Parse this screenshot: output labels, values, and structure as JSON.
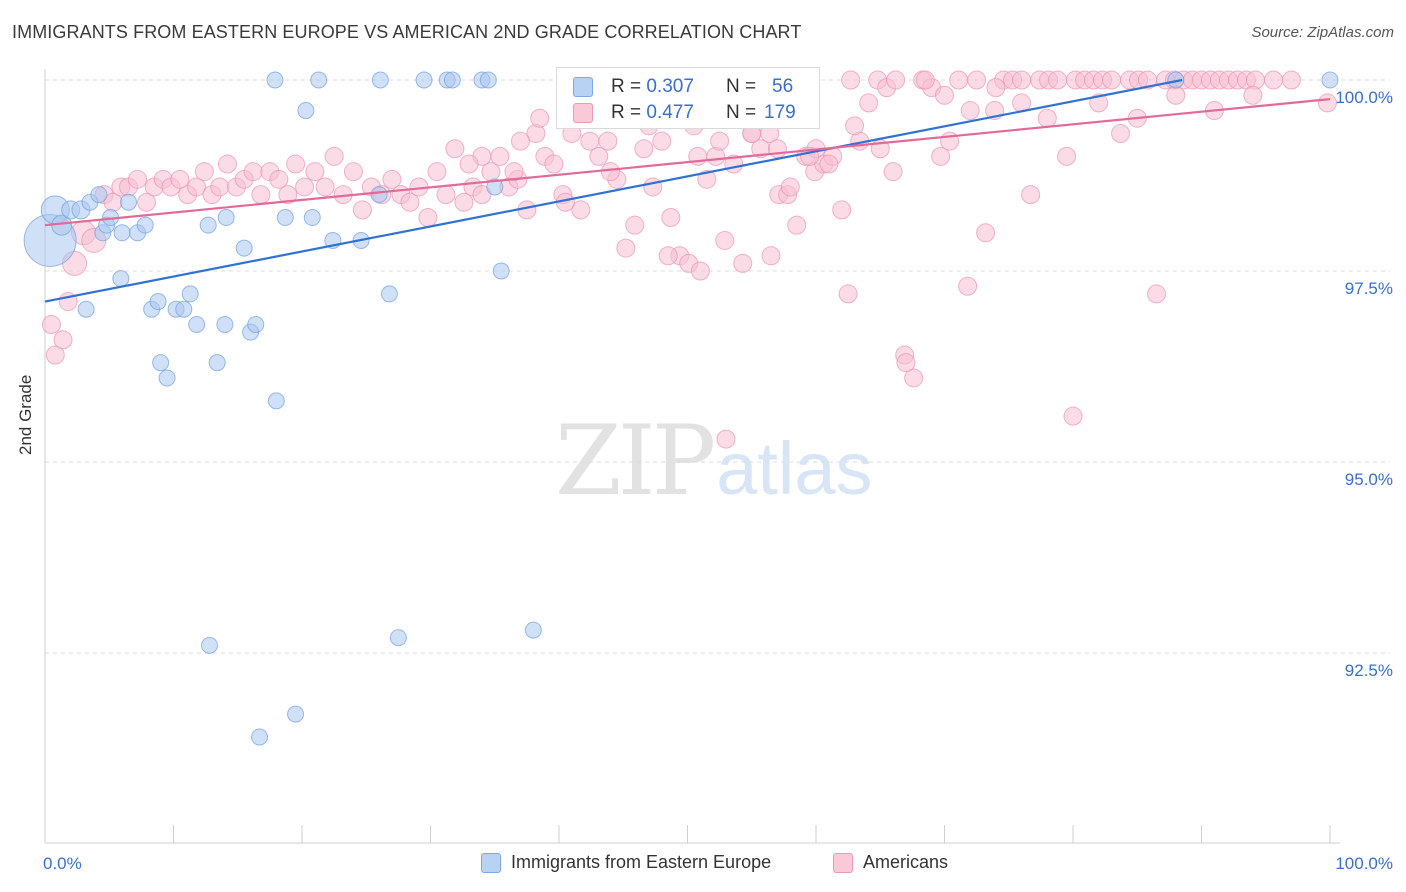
{
  "header": {
    "title": "IMMIGRANTS FROM EASTERN EUROPE VS AMERICAN 2ND GRADE CORRELATION CHART",
    "source": "Source: ZipAtlas.com"
  },
  "watermark": {
    "zip": "ZIP",
    "atlas": "atlas"
  },
  "legend_top": {
    "rows": [
      {
        "r_label": "R =",
        "r_value": "0.307",
        "n_label": "N =",
        "n_value": "56"
      },
      {
        "r_label": "R =",
        "r_value": "0.477",
        "n_label": "N =",
        "n_value": "179"
      }
    ]
  },
  "legend_bottom": {
    "items": [
      {
        "label": "Immigrants from Eastern Europe"
      },
      {
        "label": "Americans"
      }
    ]
  },
  "colors": {
    "blue_fill": "#a9c7ef",
    "blue_stroke": "#6f9fe0",
    "blue_line": "#2f72d4",
    "pink_fill": "#f7bfd1",
    "pink_stroke": "#ec93b0",
    "pink_line": "#e36a97",
    "axis_label": "#3a6fc8",
    "grid": "#dcdcdc"
  },
  "chart_data": {
    "type": "scatter",
    "title": "IMMIGRANTS FROM EASTERN EUROPE VS AMERICAN 2ND GRADE CORRELATION CHART",
    "xlabel": "",
    "ylabel": "2nd Grade",
    "xlim": [
      0,
      100
    ],
    "ylim": [
      90.0,
      100.4
    ],
    "x_tick_labels": [
      "0.0%",
      "100.0%"
    ],
    "y_ticks": [
      92.5,
      95.0,
      97.5,
      100.0
    ],
    "y_tick_labels": [
      "92.5%",
      "95.0%",
      "97.5%",
      "100.0%"
    ],
    "grid": true,
    "legend_position": "top-center",
    "series": [
      {
        "name": "Immigrants from Eastern Europe",
        "r": 0.307,
        "n": 56,
        "trend": {
          "x": [
            0,
            88.5
          ],
          "y": [
            97.1,
            100.0
          ]
        },
        "points": [
          [
            0.4,
            97.9,
            26
          ],
          [
            0.8,
            98.3,
            14
          ],
          [
            1.3,
            98.1,
            10
          ],
          [
            2.0,
            98.3,
            9
          ],
          [
            2.8,
            98.3,
            9
          ],
          [
            3.5,
            98.4,
            8
          ],
          [
            4.2,
            98.5,
            8
          ],
          [
            4.5,
            98.0,
            8
          ],
          [
            4.8,
            98.1,
            8
          ],
          [
            5.1,
            98.2,
            8
          ],
          [
            6.0,
            98.0,
            8
          ],
          [
            6.5,
            98.4,
            8
          ],
          [
            7.2,
            98.0,
            8
          ],
          [
            7.8,
            98.1,
            8
          ],
          [
            5.9,
            97.4,
            8
          ],
          [
            3.2,
            97.0,
            8
          ],
          [
            8.3,
            97.0,
            8
          ],
          [
            8.8,
            97.1,
            8
          ],
          [
            10.2,
            97.0,
            8
          ],
          [
            10.8,
            97.0,
            8
          ],
          [
            11.3,
            97.2,
            8
          ],
          [
            11.8,
            96.8,
            8
          ],
          [
            12.7,
            98.1,
            8
          ],
          [
            14.1,
            98.2,
            8
          ],
          [
            13.4,
            96.3,
            8
          ],
          [
            14.0,
            96.8,
            8
          ],
          [
            15.5,
            97.8,
            8
          ],
          [
            16.0,
            96.7,
            8
          ],
          [
            16.4,
            96.8,
            8
          ],
          [
            18.7,
            98.2,
            8
          ],
          [
            20.8,
            98.2,
            8
          ],
          [
            22.4,
            97.9,
            8
          ],
          [
            24.6,
            97.9,
            8
          ],
          [
            26.0,
            98.5,
            8
          ],
          [
            26.8,
            97.2,
            8
          ],
          [
            9.0,
            96.3,
            8
          ],
          [
            9.5,
            96.1,
            8
          ],
          [
            18.0,
            95.8,
            8
          ],
          [
            20.3,
            99.6,
            8
          ],
          [
            17.9,
            100.0,
            8
          ],
          [
            21.3,
            100.0,
            8
          ],
          [
            26.1,
            100.0,
            8
          ],
          [
            29.5,
            100.0,
            8
          ],
          [
            31.3,
            100.0,
            8
          ],
          [
            31.7,
            100.0,
            8
          ],
          [
            34.0,
            100.0,
            8
          ],
          [
            34.5,
            100.0,
            8
          ],
          [
            35.0,
            98.6,
            8
          ],
          [
            35.5,
            97.5,
            8
          ],
          [
            38.0,
            92.8,
            8
          ],
          [
            27.5,
            92.7,
            8
          ],
          [
            12.8,
            92.6,
            8
          ],
          [
            19.5,
            91.7,
            8
          ],
          [
            16.7,
            91.4,
            8
          ],
          [
            88.0,
            100.0,
            8
          ],
          [
            100.0,
            100.0,
            8
          ]
        ]
      },
      {
        "name": "Americans",
        "r": 0.477,
        "n": 179,
        "trend": {
          "x": [
            0,
            100
          ],
          "y": [
            98.1,
            99.75
          ]
        },
        "points": [
          [
            0.5,
            96.8,
            9
          ],
          [
            0.8,
            96.4,
            9
          ],
          [
            1.4,
            96.6,
            9
          ],
          [
            1.8,
            97.1,
            9
          ],
          [
            2.3,
            97.6,
            12
          ],
          [
            3.0,
            98.0,
            12
          ],
          [
            3.8,
            97.9,
            12
          ],
          [
            4.6,
            98.5,
            9
          ],
          [
            5.3,
            98.4,
            9
          ],
          [
            5.9,
            98.6,
            9
          ],
          [
            6.5,
            98.6,
            9
          ],
          [
            7.2,
            98.7,
            9
          ],
          [
            7.9,
            98.4,
            9
          ],
          [
            8.5,
            98.6,
            9
          ],
          [
            9.2,
            98.7,
            9
          ],
          [
            9.8,
            98.6,
            9
          ],
          [
            10.5,
            98.7,
            9
          ],
          [
            11.1,
            98.5,
            9
          ],
          [
            11.8,
            98.6,
            9
          ],
          [
            12.4,
            98.8,
            9
          ],
          [
            13.0,
            98.5,
            9
          ],
          [
            13.6,
            98.6,
            9
          ],
          [
            14.2,
            98.9,
            9
          ],
          [
            14.9,
            98.6,
            9
          ],
          [
            15.5,
            98.7,
            9
          ],
          [
            16.2,
            98.8,
            9
          ],
          [
            16.8,
            98.5,
            9
          ],
          [
            17.5,
            98.8,
            9
          ],
          [
            18.2,
            98.7,
            9
          ],
          [
            18.9,
            98.5,
            9
          ],
          [
            19.5,
            98.9,
            9
          ],
          [
            20.2,
            98.6,
            9
          ],
          [
            21.0,
            98.8,
            9
          ],
          [
            21.8,
            98.6,
            9
          ],
          [
            22.5,
            99.0,
            9
          ],
          [
            23.2,
            98.5,
            9
          ],
          [
            24.0,
            98.8,
            9
          ],
          [
            24.7,
            98.3,
            9
          ],
          [
            25.4,
            98.6,
            9
          ],
          [
            26.2,
            98.5,
            9
          ],
          [
            27.0,
            98.7,
            9
          ],
          [
            27.7,
            98.5,
            9
          ],
          [
            28.4,
            98.4,
            9
          ],
          [
            29.1,
            98.6,
            9
          ],
          [
            29.8,
            98.2,
            9
          ],
          [
            30.5,
            98.8,
            9
          ],
          [
            31.2,
            98.5,
            9
          ],
          [
            31.9,
            99.1,
            9
          ],
          [
            32.6,
            98.4,
            9
          ],
          [
            33.3,
            98.6,
            9
          ],
          [
            34.0,
            98.5,
            9
          ],
          [
            34.7,
            98.8,
            9
          ],
          [
            35.4,
            99.0,
            9
          ],
          [
            36.1,
            98.6,
            9
          ],
          [
            36.8,
            98.7,
            9
          ],
          [
            37.5,
            98.3,
            9
          ],
          [
            38.2,
            99.3,
            9
          ],
          [
            38.9,
            99.0,
            9
          ],
          [
            39.6,
            98.9,
            9
          ],
          [
            40.3,
            98.5,
            9
          ],
          [
            41.0,
            99.3,
            9
          ],
          [
            41.7,
            98.3,
            9
          ],
          [
            42.4,
            99.2,
            9
          ],
          [
            43.1,
            99.0,
            9
          ],
          [
            43.8,
            99.2,
            9
          ],
          [
            44.5,
            98.7,
            9
          ],
          [
            45.2,
            97.8,
            9
          ],
          [
            45.9,
            98.1,
            9
          ],
          [
            46.6,
            99.1,
            9
          ],
          [
            47.3,
            98.6,
            9
          ],
          [
            48.0,
            99.2,
            9
          ],
          [
            48.7,
            98.2,
            9
          ],
          [
            49.4,
            97.7,
            9
          ],
          [
            50.1,
            97.6,
            9
          ],
          [
            50.8,
            99.0,
            9
          ],
          [
            51.5,
            98.7,
            9
          ],
          [
            52.2,
            99.0,
            9
          ],
          [
            52.9,
            97.9,
            9
          ],
          [
            53.6,
            98.9,
            9
          ],
          [
            54.3,
            97.6,
            9
          ],
          [
            55.0,
            99.3,
            9
          ],
          [
            55.7,
            99.1,
            9
          ],
          [
            56.4,
            99.3,
            9
          ],
          [
            57.1,
            98.5,
            9
          ],
          [
            57.8,
            98.5,
            9
          ],
          [
            58.5,
            98.1,
            9
          ],
          [
            59.2,
            99.0,
            9
          ],
          [
            59.9,
            98.8,
            9
          ],
          [
            60.6,
            98.9,
            9
          ],
          [
            61.3,
            99.0,
            9
          ],
          [
            62.0,
            98.3,
            9
          ],
          [
            62.7,
            100.0,
            9
          ],
          [
            63.4,
            99.2,
            9
          ],
          [
            64.1,
            99.7,
            9
          ],
          [
            64.8,
            100.0,
            9
          ],
          [
            65.5,
            99.9,
            9
          ],
          [
            66.2,
            100.0,
            9
          ],
          [
            66.9,
            96.4,
            9
          ],
          [
            67.6,
            96.1,
            9
          ],
          [
            68.3,
            100.0,
            9
          ],
          [
            69.0,
            99.9,
            9
          ],
          [
            69.7,
            99.0,
            9
          ],
          [
            70.4,
            99.2,
            9
          ],
          [
            71.1,
            100.0,
            9
          ],
          [
            71.8,
            97.3,
            9
          ],
          [
            72.5,
            100.0,
            9
          ],
          [
            73.2,
            98.0,
            9
          ],
          [
            73.9,
            99.6,
            9
          ],
          [
            74.6,
            100.0,
            9
          ],
          [
            75.3,
            100.0,
            9
          ],
          [
            76.0,
            100.0,
            9
          ],
          [
            76.7,
            98.5,
            9
          ],
          [
            77.4,
            100.0,
            9
          ],
          [
            78.1,
            100.0,
            9
          ],
          [
            78.8,
            100.0,
            9
          ],
          [
            79.5,
            99.0,
            9
          ],
          [
            80.2,
            100.0,
            9
          ],
          [
            80.9,
            100.0,
            9
          ],
          [
            81.6,
            100.0,
            9
          ],
          [
            82.3,
            100.0,
            9
          ],
          [
            83.0,
            100.0,
            9
          ],
          [
            83.7,
            99.3,
            9
          ],
          [
            84.4,
            100.0,
            9
          ],
          [
            85.1,
            100.0,
            9
          ],
          [
            85.8,
            100.0,
            9
          ],
          [
            86.5,
            97.2,
            9
          ],
          [
            87.2,
            100.0,
            9
          ],
          [
            87.9,
            100.0,
            9
          ],
          [
            88.6,
            100.0,
            9
          ],
          [
            89.3,
            100.0,
            9
          ],
          [
            90.0,
            100.0,
            9
          ],
          [
            90.7,
            100.0,
            9
          ],
          [
            91.4,
            100.0,
            9
          ],
          [
            92.1,
            100.0,
            9
          ],
          [
            92.8,
            100.0,
            9
          ],
          [
            93.5,
            100.0,
            9
          ],
          [
            94.2,
            100.0,
            9
          ],
          [
            95.6,
            100.0,
            9
          ],
          [
            97.0,
            100.0,
            9
          ],
          [
            99.8,
            99.7,
            9
          ],
          [
            53.0,
            95.3,
            9
          ],
          [
            80.0,
            95.6,
            9
          ],
          [
            62.5,
            97.2,
            9
          ],
          [
            67.0,
            96.3,
            9
          ],
          [
            58.0,
            98.6,
            9
          ],
          [
            40.5,
            98.4,
            9
          ],
          [
            44.0,
            98.8,
            9
          ],
          [
            36.5,
            98.8,
            9
          ],
          [
            47.0,
            99.4,
            9
          ],
          [
            55.0,
            99.3,
            9
          ],
          [
            60.0,
            99.1,
            9
          ],
          [
            48.5,
            97.7,
            9
          ],
          [
            51.0,
            97.5,
            9
          ],
          [
            56.5,
            97.7,
            9
          ],
          [
            68.5,
            100.0,
            9
          ],
          [
            70.0,
            99.8,
            9
          ],
          [
            72.0,
            99.6,
            9
          ],
          [
            74.0,
            99.9,
            9
          ],
          [
            76.0,
            99.7,
            9
          ],
          [
            78.0,
            99.5,
            9
          ],
          [
            82.0,
            99.7,
            9
          ],
          [
            85.0,
            99.5,
            9
          ],
          [
            88.0,
            99.8,
            9
          ],
          [
            91.0,
            99.6,
            9
          ],
          [
            94.0,
            99.8,
            9
          ],
          [
            45.0,
            99.6,
            9
          ],
          [
            50.5,
            99.4,
            9
          ],
          [
            52.5,
            99.2,
            9
          ],
          [
            54.0,
            99.5,
            9
          ],
          [
            57.0,
            99.1,
            9
          ],
          [
            59.5,
            99.0,
            9
          ],
          [
            61.0,
            98.9,
            9
          ],
          [
            63.0,
            99.4,
            9
          ],
          [
            65.0,
            99.1,
            9
          ],
          [
            66.0,
            98.8,
            9
          ],
          [
            38.5,
            99.5,
            9
          ],
          [
            37.0,
            99.2,
            9
          ],
          [
            34.0,
            99.0,
            9
          ],
          [
            33.0,
            98.9,
            9
          ]
        ]
      }
    ]
  }
}
